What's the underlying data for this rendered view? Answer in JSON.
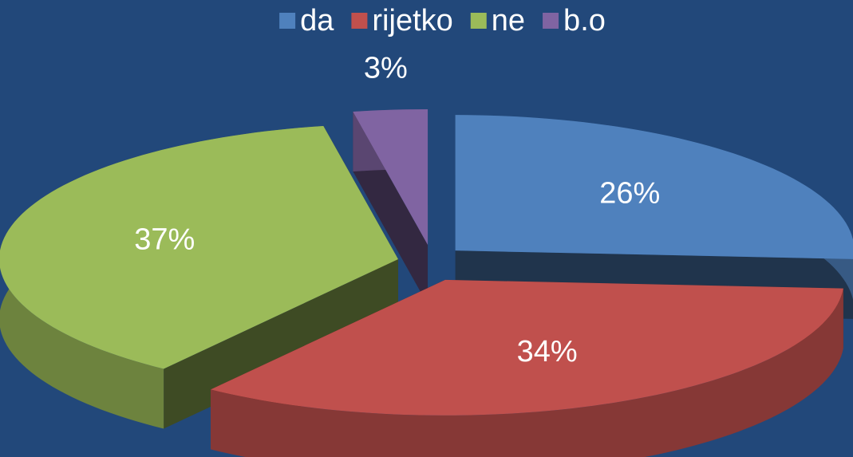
{
  "chart_data": {
    "type": "pie",
    "categories": [
      "da",
      "rijetko",
      "ne",
      "b.o"
    ],
    "values": [
      26,
      34,
      37,
      3
    ],
    "value_labels": [
      "26%",
      "34%",
      "37%",
      "3%"
    ],
    "colors": [
      "#4f81bd",
      "#c0504d",
      "#9bbb59",
      "#8064a2"
    ],
    "legend": "top"
  }
}
